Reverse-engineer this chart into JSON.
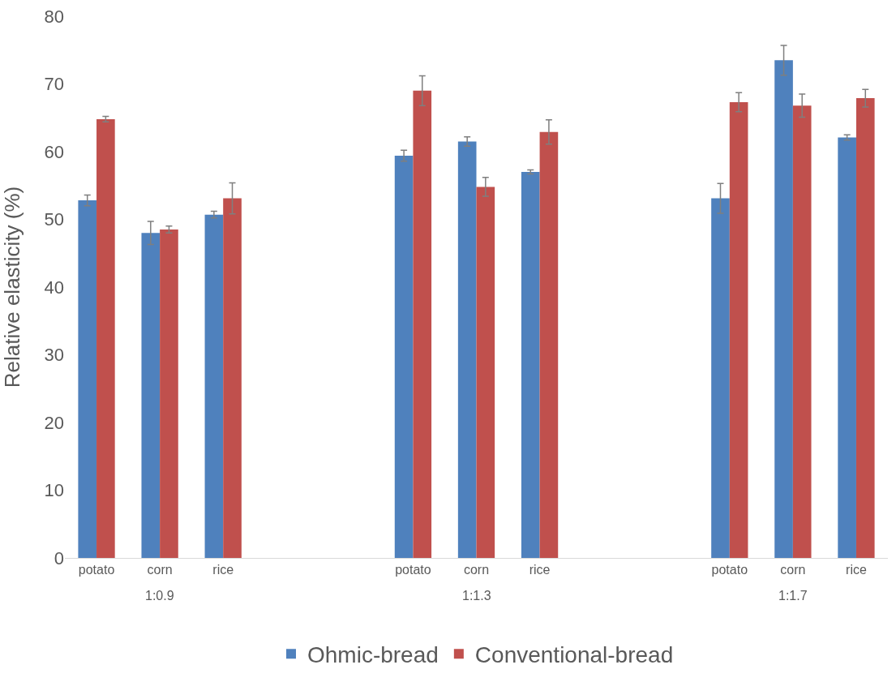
{
  "chart_data": {
    "type": "bar",
    "ylabel": "Relative elasticity (%)",
    "categories": [
      "potato",
      "corn",
      "rice",
      null,
      null,
      "potato",
      "corn",
      "rice",
      null,
      null,
      "potato",
      "corn",
      "rice"
    ],
    "series": [
      {
        "name": "Ohmic-bread",
        "color": "#4f81bd",
        "values": [
          52.8,
          48,
          50.7,
          null,
          null,
          59.4,
          61.5,
          57,
          null,
          null,
          53.1,
          73.5,
          62.1
        ],
        "errors": [
          0.8,
          1.7,
          0.5,
          null,
          null,
          0.8,
          0.7,
          0.3,
          null,
          null,
          2.2,
          2.2,
          0.4
        ]
      },
      {
        "name": "Conventional-bread",
        "color": "#c0504d",
        "values": [
          64.8,
          48.5,
          53.1,
          null,
          null,
          69,
          54.8,
          62.9,
          null,
          null,
          67.3,
          66.8,
          67.9
        ],
        "errors": [
          0.4,
          0.5,
          2.3,
          null,
          null,
          2.2,
          1.4,
          1.8,
          null,
          null,
          1.4,
          1.7,
          1.3
        ]
      }
    ],
    "annotations": [
      "1:0.9",
      "1:1.3",
      "1:1.7"
    ],
    "ylim": [
      0,
      80
    ],
    "yticks": [
      0,
      10,
      20,
      30,
      40,
      50,
      60,
      70,
      80
    ],
    "grid": false,
    "legend": "bottom"
  }
}
